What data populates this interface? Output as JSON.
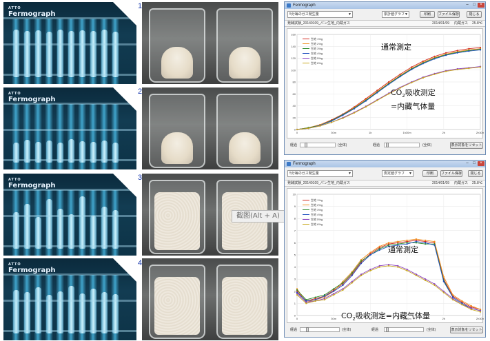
{
  "steps": [
    {
      "number": "1",
      "dough_state": "initial"
    },
    {
      "number": "2",
      "dough_state": "initial"
    },
    {
      "number": "3",
      "dough_state": "risen"
    },
    {
      "number": "4",
      "dough_state": "risen"
    }
  ],
  "photo": {
    "brand_small": "ATTO",
    "brand_large": "Fermograph",
    "tube_heights_pct": [
      [
        72,
        70,
        71,
        69,
        72,
        70,
        71,
        70,
        72,
        69
      ],
      [
        30,
        34,
        31,
        33,
        30,
        35,
        32,
        31,
        33,
        30
      ],
      [
        55,
        68,
        48,
        75,
        60,
        52,
        79,
        50,
        64,
        58
      ],
      [
        66,
        62,
        70,
        58,
        64,
        72,
        60,
        68,
        63,
        59
      ]
    ]
  },
  "tooltip": {
    "text": "截图(Alt + A)"
  },
  "window1": {
    "title": "Fermograph",
    "dropdown1": "5分毎のガス発生量",
    "dropdown2": "累計値グラフ",
    "btn_print": "印刷",
    "btn_save": "ファイル保存",
    "btn_close": "閉じる",
    "info_file": "発酵試験_20140109_パン生地_内蔵ガス",
    "info_date": "2014/01/09",
    "info_mode": "内蔵ガス",
    "info_temp": "25.8℃",
    "bottom_label_left": "経過",
    "bottom_label_right": "経過",
    "bottom_unit_left": "(全体)",
    "bottom_unit_right": "(全体)",
    "bottom_btn": "表示対象をリセット",
    "annotation_main": "通常測定",
    "annotation_co2_1": "CO",
    "annotation_co2_sub": "2",
    "annotation_co2_2": "吸收测定",
    "annotation_volume": "=内藏气体量"
  },
  "window2": {
    "title": "Fermograph",
    "dropdown1": "5分毎のガス発生量",
    "dropdown2": "測定値グラフ",
    "btn_print": "印刷",
    "btn_save": "ファイル保存",
    "btn_close": "閉じる",
    "info_file": "発酵試験_20140109_パン生地_内蔵ガス",
    "info_date": "2014/01/09",
    "info_mode": "内蔵ガス",
    "info_temp": "25.8℃",
    "bottom_label_left": "経過",
    "bottom_label_right": "経過",
    "bottom_unit_left": "(全体)",
    "bottom_unit_right": "(全体)",
    "bottom_btn": "表示対象をリセット",
    "annotation_main": "通常測定",
    "annotation_co2": "CO",
    "annotation_co2_sub": "2",
    "annotation_co2_rest": "吸收测定=内藏气体量"
  },
  "legend_entries": [
    "生地 1%g",
    "生地 2%g",
    "生地 3%g",
    "生地 4%g",
    "生地 5%g",
    "生地 6%g",
    "生地 7%g",
    "生地 8%g"
  ],
  "series_colors": [
    "#d3281e",
    "#f08c1a",
    "#2b8a2b",
    "#1f4fbf",
    "#8b3fbf",
    "#c8a81c",
    "#333333",
    "#e8762a"
  ],
  "chart_data": [
    {
      "type": "line",
      "title": "",
      "xlabel": "",
      "ylabel": "",
      "ylim": [
        0,
        160
      ],
      "y_ticks": [
        "160",
        "140",
        "120",
        "100",
        "80",
        "60",
        "40",
        "20",
        "0"
      ],
      "x_ticks": [
        "0",
        "30m",
        "1h",
        "1h30m",
        "2h",
        "2h30m"
      ],
      "x": [
        0,
        10,
        20,
        30,
        40,
        50,
        60,
        70,
        80,
        90,
        100,
        110,
        120,
        130,
        140,
        150,
        160
      ],
      "series": [
        {
          "name": "生地 1%g",
          "values": [
            0,
            3,
            8,
            16,
            26,
            38,
            52,
            66,
            80,
            93,
            105,
            115,
            123,
            129,
            133,
            136,
            138
          ]
        },
        {
          "name": "生地 2%g",
          "values": [
            0,
            3,
            8,
            15,
            25,
            37,
            50,
            64,
            78,
            91,
            103,
            113,
            121,
            127,
            131,
            134,
            136
          ]
        },
        {
          "name": "生地 3%g",
          "values": [
            0,
            3,
            7,
            15,
            25,
            36,
            49,
            63,
            77,
            90,
            102,
            112,
            120,
            126,
            130,
            133,
            135
          ]
        },
        {
          "name": "生地 4%g",
          "values": [
            0,
            2,
            7,
            14,
            24,
            35,
            48,
            62,
            76,
            89,
            101,
            111,
            119,
            125,
            129,
            132,
            134
          ]
        },
        {
          "name": "生地 5%g",
          "values": [
            0,
            2,
            6,
            12,
            20,
            29,
            39,
            50,
            61,
            71,
            80,
            88,
            94,
            99,
            102,
            104,
            106
          ]
        },
        {
          "name": "生地 6%g",
          "values": [
            0,
            2,
            6,
            12,
            19,
            28,
            38,
            49,
            60,
            70,
            79,
            87,
            93,
            98,
            101,
            103,
            105
          ]
        }
      ]
    },
    {
      "type": "line",
      "title": "",
      "xlabel": "",
      "ylabel": "",
      "ylim": [
        0,
        10
      ],
      "y_ticks": [
        "10",
        "9",
        "8",
        "7",
        "6",
        "5",
        "4",
        "3",
        "2",
        "1",
        "0"
      ],
      "x_ticks": [
        "0",
        "30m",
        "1h",
        "1h30m",
        "2h",
        "2h30m"
      ],
      "x": [
        0,
        8,
        16,
        24,
        32,
        40,
        48,
        56,
        64,
        72,
        80,
        88,
        96,
        104,
        112,
        120,
        128,
        136,
        144,
        152,
        160
      ],
      "series": [
        {
          "name": "生地 1%g",
          "values": [
            2.0,
            1.2,
            1.4,
            1.6,
            2.1,
            2.6,
            3.4,
            4.4,
            5.1,
            5.6,
            5.9,
            6.0,
            6.1,
            6.2,
            6.1,
            6.0,
            3.0,
            1.6,
            1.1,
            0.7,
            0.5
          ]
        },
        {
          "name": "生地 2%g",
          "values": [
            2.2,
            1.1,
            1.3,
            1.5,
            2.0,
            2.8,
            3.6,
            4.6,
            5.2,
            5.7,
            6.0,
            6.1,
            6.2,
            6.3,
            6.2,
            6.1,
            3.2,
            1.7,
            1.2,
            0.8,
            0.5
          ]
        },
        {
          "name": "生地 3%g",
          "values": [
            2.1,
            1.3,
            1.5,
            1.7,
            2.2,
            2.7,
            3.5,
            4.5,
            5.0,
            5.5,
            5.8,
            5.9,
            6.0,
            6.0,
            5.9,
            5.9,
            2.9,
            1.5,
            1.0,
            0.6,
            0.4
          ]
        },
        {
          "name": "生地 4%g",
          "values": [
            1.9,
            1.2,
            1.3,
            1.6,
            2.0,
            2.5,
            3.3,
            4.3,
            5.0,
            5.4,
            5.7,
            5.8,
            5.9,
            6.1,
            6.0,
            5.8,
            2.8,
            1.5,
            1.0,
            0.6,
            0.4
          ]
        },
        {
          "name": "生地 5%g",
          "values": [
            1.8,
            1.1,
            1.2,
            1.4,
            1.8,
            2.2,
            2.8,
            3.4,
            3.8,
            4.1,
            4.2,
            4.1,
            3.8,
            3.4,
            3.0,
            2.6,
            2.0,
            1.4,
            0.9,
            0.6,
            0.4
          ]
        },
        {
          "name": "生地 6%g",
          "values": [
            1.7,
            1.0,
            1.2,
            1.3,
            1.7,
            2.1,
            2.7,
            3.3,
            3.7,
            4.0,
            4.1,
            4.0,
            3.7,
            3.3,
            2.9,
            2.5,
            1.9,
            1.3,
            0.9,
            0.5,
            0.3
          ]
        }
      ]
    }
  ]
}
